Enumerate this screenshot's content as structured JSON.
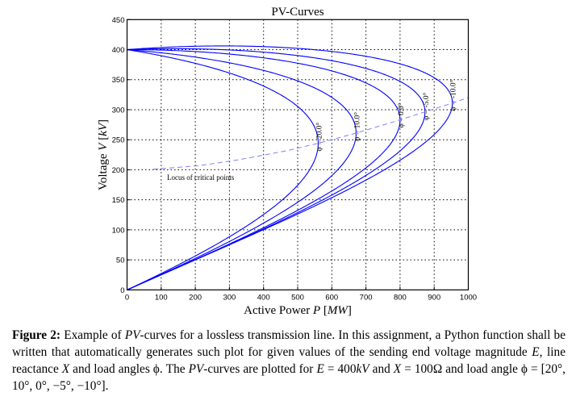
{
  "chart_data": {
    "type": "line",
    "title": "PV-Curves",
    "xlabel": {
      "prefix": "Active Power ",
      "var": "P",
      "unit": "MW"
    },
    "ylabel": {
      "prefix": "Voltage ",
      "var": "V",
      "unit": "kV"
    },
    "xlim": [
      0,
      1000
    ],
    "ylim": [
      0,
      450
    ],
    "xticks": [
      0,
      100,
      200,
      300,
      400,
      500,
      600,
      700,
      800,
      900,
      1000
    ],
    "yticks": [
      0,
      50,
      100,
      150,
      200,
      250,
      300,
      350,
      400,
      450
    ],
    "grid": true,
    "E_kV": 400,
    "X_ohm": 100,
    "series_color": "#0000ff",
    "series": [
      {
        "label": "φ = 20.0°",
        "phi_deg": 20,
        "p_max": 560,
        "v_critical": 244
      },
      {
        "label": "φ = 10.0°",
        "phi_deg": 10,
        "p_max": 671,
        "v_critical": 261
      },
      {
        "label": "φ = 0.0°",
        "phi_deg": 0,
        "p_max": 800,
        "v_critical": 283
      },
      {
        "label": "φ = -5.0°",
        "phi_deg": -5,
        "p_max": 873,
        "v_critical": 296
      },
      {
        "label": "φ = -10.0°",
        "phi_deg": -10,
        "p_max": 953,
        "v_critical": 311
      }
    ],
    "locus": {
      "label": "Locus of critical points",
      "style": "dashed",
      "color": "#8080ff",
      "points": [
        [
          77,
          201
        ],
        [
          105,
          202
        ],
        [
          214,
          207
        ],
        [
          331,
          217
        ],
        [
          462,
          231
        ],
        [
          560,
          244
        ],
        [
          671,
          261
        ],
        [
          800,
          283
        ],
        [
          953,
          311
        ],
        [
          1000,
          320
        ]
      ]
    }
  },
  "caption": {
    "segments": [
      {
        "t": "Figure 2:",
        "s": "b"
      },
      {
        "t": " Example of ",
        "s": ""
      },
      {
        "t": "PV",
        "s": "i"
      },
      {
        "t": "-curves for a lossless transmission line.  In this assignment, a Python function shall be written that automatically generates such plot for given values of the sending end voltage magnitude ",
        "s": ""
      },
      {
        "t": "E",
        "s": "i"
      },
      {
        "t": ", line reactance ",
        "s": ""
      },
      {
        "t": "X",
        "s": "i"
      },
      {
        "t": " and load angles ϕ.  The ",
        "s": ""
      },
      {
        "t": "PV",
        "s": "i"
      },
      {
        "t": "-curves are plotted for ",
        "s": ""
      },
      {
        "t": "E",
        "s": "i"
      },
      {
        "t": " = 400",
        "s": ""
      },
      {
        "t": "kV",
        "s": "i"
      },
      {
        "t": " and ",
        "s": ""
      },
      {
        "t": "X",
        "s": "i"
      },
      {
        "t": " = 100Ω and load angle ϕ = [20°, 10°, 0°, −5°, −10°].",
        "s": ""
      }
    ]
  }
}
